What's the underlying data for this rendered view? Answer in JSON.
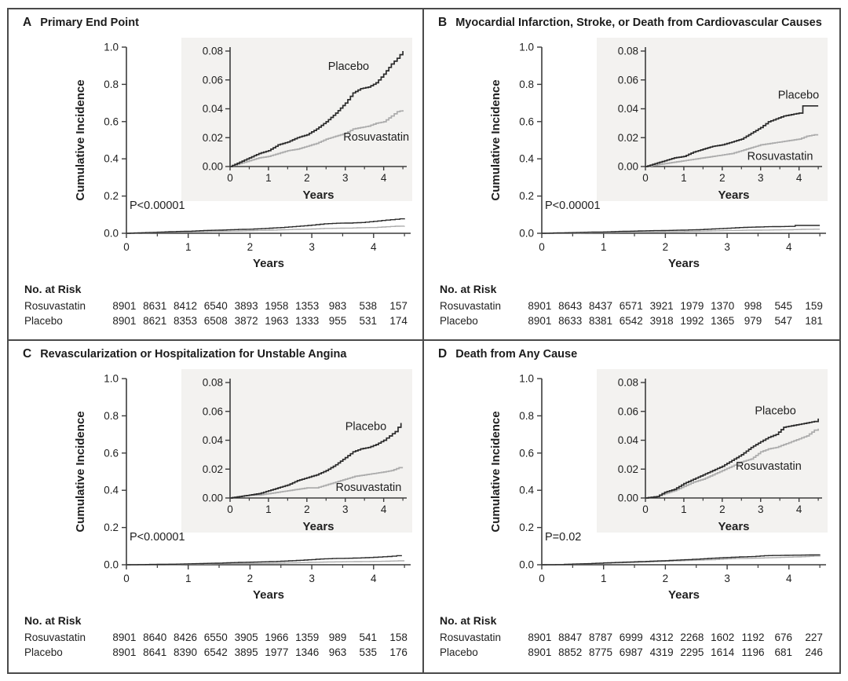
{
  "figure": {
    "xlabel": "Years",
    "ylabel": "Cumulative Incidence",
    "at_risk_heading": "No. at Risk",
    "colors": {
      "placebo": "#2a2a2a",
      "rosuvastatin": "#acacac",
      "inset_bg": "#f3f2f0",
      "axis": "#3c3c3c",
      "text": "#1f1f1f"
    }
  },
  "panels": [
    {
      "letter": "A",
      "title": "Primary End Point",
      "p_value": "P<0.00001",
      "at_risk": [
        {
          "label": "Rosuvastatin",
          "values": [
            8901,
            8631,
            8412,
            6540,
            3893,
            1958,
            1353,
            983,
            538,
            157
          ]
        },
        {
          "label": "Placebo",
          "values": [
            8901,
            8621,
            8353,
            6508,
            3872,
            1963,
            1333,
            955,
            531,
            174
          ]
        }
      ]
    },
    {
      "letter": "B",
      "title": "Myocardial Infarction, Stroke, or Death from Cardiovascular Causes",
      "p_value": "P<0.00001",
      "at_risk": [
        {
          "label": "Rosuvastatin",
          "values": [
            8901,
            8643,
            8437,
            6571,
            3921,
            1979,
            1370,
            998,
            545,
            159
          ]
        },
        {
          "label": "Placebo",
          "values": [
            8901,
            8633,
            8381,
            6542,
            3918,
            1992,
            1365,
            979,
            547,
            181
          ]
        }
      ]
    },
    {
      "letter": "C",
      "title": "Revascularization or Hospitalization for Unstable Angina",
      "p_value": "P<0.00001",
      "at_risk": [
        {
          "label": "Rosuvastatin",
          "values": [
            8901,
            8640,
            8426,
            6550,
            3905,
            1966,
            1359,
            989,
            541,
            158
          ]
        },
        {
          "label": "Placebo",
          "values": [
            8901,
            8641,
            8390,
            6542,
            3895,
            1977,
            1346,
            963,
            535,
            176
          ]
        }
      ]
    },
    {
      "letter": "D",
      "title": "Death from Any Cause",
      "p_value": "P=0.02",
      "at_risk": [
        {
          "label": "Rosuvastatin",
          "values": [
            8901,
            8847,
            8787,
            6999,
            4312,
            2268,
            1602,
            1192,
            676,
            227
          ]
        },
        {
          "label": "Placebo",
          "values": [
            8901,
            8852,
            8775,
            6987,
            4319,
            2295,
            1614,
            1196,
            681,
            246
          ]
        }
      ]
    }
  ],
  "chart_data": [
    {
      "panel": "A",
      "type": "line",
      "title": "Primary End Point",
      "xlabel": "Years",
      "ylabel": "Cumulative Incidence",
      "p_value": "P<0.00001",
      "xlim": [
        0,
        4.6
      ],
      "x_ticks": [
        0,
        1,
        2,
        3,
        4
      ],
      "x_minor_ticks": [
        0.5,
        1.5,
        2.5,
        3.5,
        4.5
      ],
      "main_ylim": [
        0,
        1.0
      ],
      "main_y_ticks": [
        0.0,
        0.2,
        0.4,
        0.6,
        0.8,
        1.0
      ],
      "inset_ylim": [
        0,
        0.08
      ],
      "inset_y_ticks": [
        0.0,
        0.02,
        0.04,
        0.06,
        0.08
      ],
      "series": [
        {
          "name": "Rosuvastatin",
          "color_key": "rosuvastatin",
          "label_pos": [
            2.95,
            0.018
          ],
          "points": [
            [
              0,
              0
            ],
            [
              0.25,
              0.002
            ],
            [
              0.5,
              0.004
            ],
            [
              0.75,
              0.006
            ],
            [
              1,
              0.007
            ],
            [
              1.25,
              0.009
            ],
            [
              1.5,
              0.011
            ],
            [
              1.75,
              0.012
            ],
            [
              2,
              0.014
            ],
            [
              2.25,
              0.016
            ],
            [
              2.5,
              0.019
            ],
            [
              2.75,
              0.021
            ],
            [
              3,
              0.023
            ],
            [
              3.2,
              0.026
            ],
            [
              3.4,
              0.027
            ],
            [
              3.6,
              0.028
            ],
            [
              3.8,
              0.03
            ],
            [
              4,
              0.031
            ],
            [
              4.2,
              0.035
            ],
            [
              4.35,
              0.038
            ],
            [
              4.5,
              0.039
            ]
          ]
        },
        {
          "name": "Placebo",
          "color_key": "placebo",
          "label_pos": [
            2.55,
            0.067
          ],
          "points": [
            [
              0,
              0
            ],
            [
              0.25,
              0.003
            ],
            [
              0.5,
              0.006
            ],
            [
              0.75,
              0.009
            ],
            [
              1,
              0.011
            ],
            [
              1.25,
              0.015
            ],
            [
              1.5,
              0.017
            ],
            [
              1.75,
              0.02
            ],
            [
              2,
              0.022
            ],
            [
              2.25,
              0.026
            ],
            [
              2.5,
              0.031
            ],
            [
              2.75,
              0.037
            ],
            [
              3,
              0.044
            ],
            [
              3.2,
              0.051
            ],
            [
              3.4,
              0.054
            ],
            [
              3.6,
              0.055
            ],
            [
              3.8,
              0.058
            ],
            [
              4,
              0.064
            ],
            [
              4.2,
              0.071
            ],
            [
              4.35,
              0.075
            ],
            [
              4.5,
              0.08
            ]
          ]
        }
      ]
    },
    {
      "panel": "B",
      "type": "line",
      "title": "Myocardial Infarction, Stroke, or Death from Cardiovascular Causes",
      "xlabel": "Years",
      "ylabel": "Cumulative Incidence",
      "p_value": "P<0.00001",
      "xlim": [
        0,
        4.6
      ],
      "x_ticks": [
        0,
        1,
        2,
        3,
        4
      ],
      "x_minor_ticks": [
        0.5,
        1.5,
        2.5,
        3.5,
        4.5
      ],
      "main_ylim": [
        0,
        1.0
      ],
      "main_y_ticks": [
        0.0,
        0.2,
        0.4,
        0.6,
        0.8,
        1.0
      ],
      "inset_ylim": [
        0,
        0.08
      ],
      "inset_y_ticks": [
        0.0,
        0.02,
        0.04,
        0.06,
        0.08
      ],
      "series": [
        {
          "name": "Rosuvastatin",
          "color_key": "rosuvastatin",
          "label_pos": [
            2.65,
            0.0045
          ],
          "points": [
            [
              0,
              0
            ],
            [
              0.25,
              0.001
            ],
            [
              0.5,
              0.002
            ],
            [
              0.75,
              0.003
            ],
            [
              1,
              0.004
            ],
            [
              1.25,
              0.005
            ],
            [
              1.5,
              0.006
            ],
            [
              1.75,
              0.007
            ],
            [
              2,
              0.008
            ],
            [
              2.25,
              0.009
            ],
            [
              2.5,
              0.011
            ],
            [
              2.75,
              0.013
            ],
            [
              3,
              0.015
            ],
            [
              3.25,
              0.016
            ],
            [
              3.5,
              0.017
            ],
            [
              3.75,
              0.018
            ],
            [
              4,
              0.019
            ],
            [
              4.2,
              0.021
            ],
            [
              4.4,
              0.022
            ],
            [
              4.5,
              0.022
            ]
          ]
        },
        {
          "name": "Placebo",
          "color_key": "placebo",
          "label_pos": [
            3.45,
            0.047
          ],
          "points": [
            [
              0,
              0
            ],
            [
              0.25,
              0.002
            ],
            [
              0.5,
              0.004
            ],
            [
              0.75,
              0.006
            ],
            [
              1,
              0.007
            ],
            [
              1.25,
              0.01
            ],
            [
              1.5,
              0.012
            ],
            [
              1.75,
              0.014
            ],
            [
              2,
              0.015
            ],
            [
              2.25,
              0.017
            ],
            [
              2.5,
              0.019
            ],
            [
              2.75,
              0.023
            ],
            [
              3,
              0.027
            ],
            [
              3.2,
              0.031
            ],
            [
              3.4,
              0.033
            ],
            [
              3.6,
              0.035
            ],
            [
              3.8,
              0.036
            ],
            [
              4,
              0.037
            ],
            [
              4.1,
              0.042
            ],
            [
              4.5,
              0.042
            ]
          ]
        }
      ]
    },
    {
      "panel": "C",
      "type": "line",
      "title": "Revascularization or Hospitalization for Unstable Angina",
      "xlabel": "Years",
      "ylabel": "Cumulative Incidence",
      "p_value": "P<0.00001",
      "xlim": [
        0,
        4.6
      ],
      "x_ticks": [
        0,
        1,
        2,
        3,
        4
      ],
      "x_minor_ticks": [
        0.5,
        1.5,
        2.5,
        3.5,
        4.5
      ],
      "main_ylim": [
        0,
        1.0
      ],
      "main_y_ticks": [
        0.0,
        0.2,
        0.4,
        0.6,
        0.8,
        1.0
      ],
      "inset_ylim": [
        0,
        0.08
      ],
      "inset_y_ticks": [
        0.0,
        0.02,
        0.04,
        0.06,
        0.08
      ],
      "series": [
        {
          "name": "Rosuvastatin",
          "color_key": "rosuvastatin",
          "label_pos": [
            2.75,
            0.005
          ],
          "points": [
            [
              0,
              0
            ],
            [
              0.25,
              0.001
            ],
            [
              0.5,
              0.002
            ],
            [
              0.75,
              0.002
            ],
            [
              1,
              0.003
            ],
            [
              1.25,
              0.004
            ],
            [
              1.5,
              0.005
            ],
            [
              1.75,
              0.006
            ],
            [
              2,
              0.007
            ],
            [
              2.25,
              0.007
            ],
            [
              2.5,
              0.009
            ],
            [
              2.75,
              0.011
            ],
            [
              3,
              0.013
            ],
            [
              3.25,
              0.015
            ],
            [
              3.5,
              0.016
            ],
            [
              3.75,
              0.017
            ],
            [
              4,
              0.018
            ],
            [
              4.2,
              0.019
            ],
            [
              4.4,
              0.021
            ],
            [
              4.5,
              0.021
            ]
          ]
        },
        {
          "name": "Placebo",
          "color_key": "placebo",
          "label_pos": [
            3.0,
            0.047
          ],
          "points": [
            [
              0,
              0
            ],
            [
              0.25,
              0.001
            ],
            [
              0.5,
              0.002
            ],
            [
              0.75,
              0.003
            ],
            [
              1,
              0.005
            ],
            [
              1.25,
              0.007
            ],
            [
              1.5,
              0.009
            ],
            [
              1.75,
              0.012
            ],
            [
              2,
              0.014
            ],
            [
              2.25,
              0.016
            ],
            [
              2.5,
              0.019
            ],
            [
              2.75,
              0.023
            ],
            [
              3,
              0.028
            ],
            [
              3.2,
              0.032
            ],
            [
              3.4,
              0.034
            ],
            [
              3.6,
              0.035
            ],
            [
              3.8,
              0.037
            ],
            [
              4,
              0.04
            ],
            [
              4.15,
              0.043
            ],
            [
              4.3,
              0.046
            ],
            [
              4.45,
              0.052
            ]
          ]
        }
      ]
    },
    {
      "panel": "D",
      "type": "line",
      "title": "Death from Any Cause",
      "xlabel": "Years",
      "ylabel": "Cumulative Incidence",
      "p_value": "P=0.02",
      "xlim": [
        0,
        4.6
      ],
      "x_ticks": [
        0,
        1,
        2,
        3,
        4
      ],
      "x_minor_ticks": [
        0.5,
        1.5,
        2.5,
        3.5,
        4.5
      ],
      "main_ylim": [
        0,
        1.0
      ],
      "main_y_ticks": [
        0.0,
        0.2,
        0.4,
        0.6,
        0.8,
        1.0
      ],
      "inset_ylim": [
        0,
        0.08
      ],
      "inset_y_ticks": [
        0.0,
        0.02,
        0.04,
        0.06,
        0.08
      ],
      "series": [
        {
          "name": "Rosuvastatin",
          "color_key": "rosuvastatin",
          "label_pos": [
            2.35,
            0.0195
          ],
          "points": [
            [
              0,
              0
            ],
            [
              0.3,
              0.001
            ],
            [
              0.5,
              0.003
            ],
            [
              0.75,
              0.005
            ],
            [
              1,
              0.008
            ],
            [
              1.25,
              0.011
            ],
            [
              1.5,
              0.013
            ],
            [
              1.75,
              0.016
            ],
            [
              2,
              0.019
            ],
            [
              2.25,
              0.022
            ],
            [
              2.5,
              0.025
            ],
            [
              2.75,
              0.027
            ],
            [
              3,
              0.032
            ],
            [
              3.2,
              0.034
            ],
            [
              3.4,
              0.035
            ],
            [
              3.6,
              0.037
            ],
            [
              3.8,
              0.039
            ],
            [
              4,
              0.041
            ],
            [
              4.2,
              0.043
            ],
            [
              4.4,
              0.047
            ],
            [
              4.5,
              0.048
            ]
          ]
        },
        {
          "name": "Placebo",
          "color_key": "placebo",
          "label_pos": [
            2.85,
            0.058
          ],
          "points": [
            [
              0,
              0
            ],
            [
              0.3,
              0.001
            ],
            [
              0.5,
              0.004
            ],
            [
              0.75,
              0.006
            ],
            [
              1,
              0.01
            ],
            [
              1.25,
              0.013
            ],
            [
              1.5,
              0.016
            ],
            [
              1.75,
              0.019
            ],
            [
              2,
              0.022
            ],
            [
              2.25,
              0.026
            ],
            [
              2.5,
              0.03
            ],
            [
              2.75,
              0.035
            ],
            [
              3,
              0.039
            ],
            [
              3.2,
              0.042
            ],
            [
              3.4,
              0.044
            ],
            [
              3.6,
              0.049
            ],
            [
              3.8,
              0.05
            ],
            [
              4,
              0.051
            ],
            [
              4.2,
              0.052
            ],
            [
              4.4,
              0.053
            ],
            [
              4.5,
              0.055
            ]
          ]
        }
      ]
    }
  ]
}
